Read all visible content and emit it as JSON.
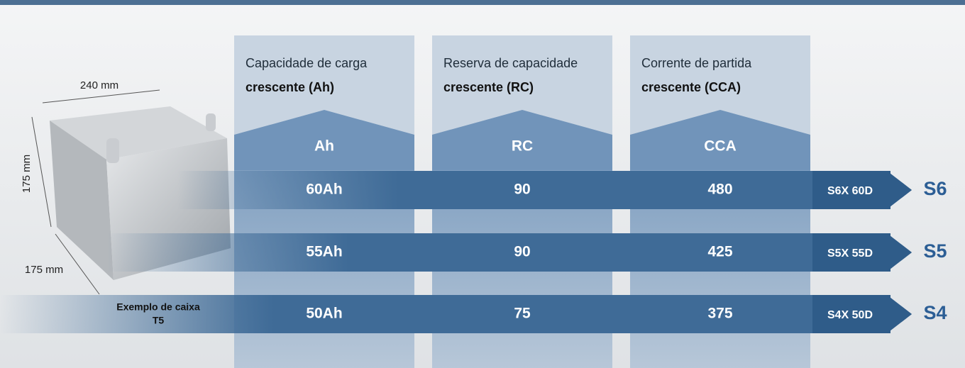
{
  "columns": [
    {
      "title": "Capacidade de carga",
      "subtitle": "crescente (Ah)",
      "unit": "Ah"
    },
    {
      "title": "Reserva de capacidade",
      "subtitle": "crescente (RC)",
      "unit": "RC"
    },
    {
      "title": "Corrente de partida",
      "subtitle": "crescente (CCA)",
      "unit": "CCA"
    }
  ],
  "rows": [
    {
      "values": [
        "60Ah",
        90,
        480
      ],
      "code": "S6X 60D",
      "series": "S6"
    },
    {
      "values": [
        "55Ah",
        90,
        425
      ],
      "code": "S5X 55D",
      "series": "S5"
    },
    {
      "values": [
        "50Ah",
        75,
        375
      ],
      "code": "S4X 50D",
      "series": "S4"
    }
  ],
  "battery": {
    "width": "240 mm",
    "height": "175 mm",
    "depth": "175 mm",
    "caption": [
      "Exemplo de caixa",
      "T5"
    ]
  }
}
